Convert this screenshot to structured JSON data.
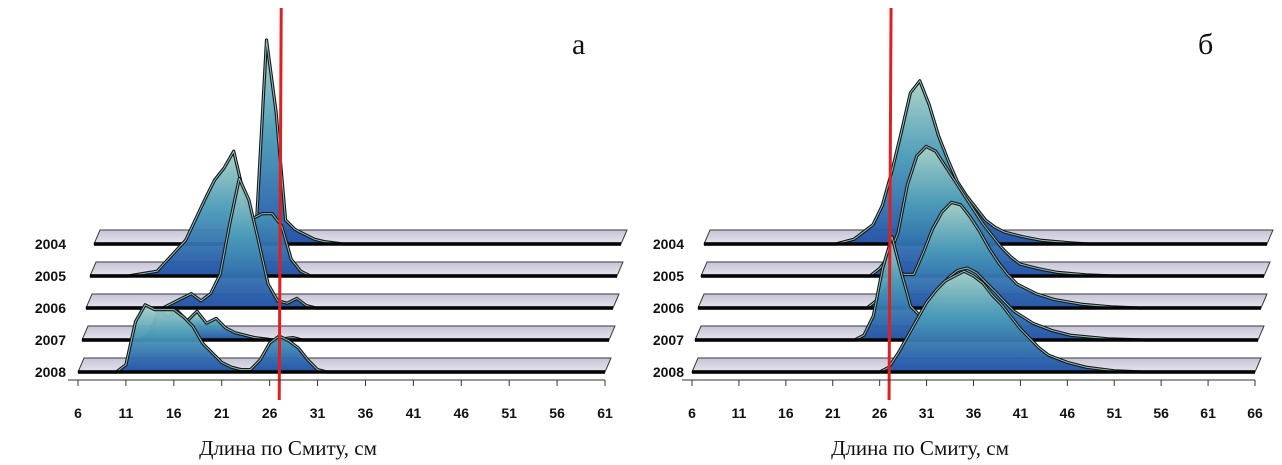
{
  "figure": {
    "panels": [
      {
        "letter": "а",
        "xlabel": "Длина по Смиту, см"
      },
      {
        "letter": "б",
        "xlabel": "Длина по Смиту, см"
      }
    ]
  },
  "chart_data": [
    {
      "type": "area",
      "title": "а",
      "xlabel": "Длина по Смиту, см",
      "ylabel": "",
      "xlim": [
        6,
        61
      ],
      "x_ticks": [
        6,
        11,
        16,
        21,
        26,
        31,
        36,
        41,
        46,
        51,
        56,
        61
      ],
      "reference_line_x": 27,
      "series": [
        {
          "name": "2004",
          "points": [
            [
              6,
              0
            ],
            [
              20,
              0
            ],
            [
              22,
              0.2
            ],
            [
              23,
              1.2
            ],
            [
              24,
              8.5
            ],
            [
              25,
              5.5
            ],
            [
              26,
              1.0
            ],
            [
              27,
              0.6
            ],
            [
              28,
              0.4
            ],
            [
              29,
              0.2
            ],
            [
              30,
              0.1
            ],
            [
              32,
              0
            ],
            [
              61,
              0
            ]
          ]
        },
        {
          "name": "2005",
          "points": [
            [
              6,
              0
            ],
            [
              10,
              0
            ],
            [
              13,
              0.2
            ],
            [
              16,
              1.5
            ],
            [
              18,
              3.2
            ],
            [
              19,
              4.0
            ],
            [
              20,
              4.5
            ],
            [
              21,
              5.2
            ],
            [
              22,
              3.5
            ],
            [
              23,
              2.4
            ],
            [
              24,
              2.6
            ],
            [
              25,
              2.6
            ],
            [
              26,
              2.1
            ],
            [
              27,
              0.7
            ],
            [
              28,
              0.2
            ],
            [
              29,
              0
            ],
            [
              61,
              0
            ]
          ]
        },
        {
          "name": "2006",
          "points": [
            [
              6,
              0
            ],
            [
              14,
              0
            ],
            [
              16,
              0.4
            ],
            [
              17,
              0.6
            ],
            [
              18,
              0.3
            ],
            [
              19,
              0.6
            ],
            [
              20,
              1.4
            ],
            [
              21,
              3.5
            ],
            [
              22,
              5.4
            ],
            [
              23,
              4.5
            ],
            [
              24,
              2.8
            ],
            [
              25,
              1.0
            ],
            [
              26,
              0.3
            ],
            [
              27,
              0.2
            ],
            [
              28,
              0.4
            ],
            [
              29,
              0.1
            ],
            [
              30,
              0
            ],
            [
              61,
              0
            ]
          ]
        },
        {
          "name": "2007",
          "points": [
            [
              6,
              0
            ],
            [
              12,
              0
            ],
            [
              13,
              0.2
            ],
            [
              14,
              1.2
            ],
            [
              15,
              1.0
            ],
            [
              16,
              1.2
            ],
            [
              17,
              0.8
            ],
            [
              18,
              1.2
            ],
            [
              19,
              0.7
            ],
            [
              20,
              0.9
            ],
            [
              21,
              0.5
            ],
            [
              22,
              0.3
            ],
            [
              23,
              0.2
            ],
            [
              24,
              0.1
            ],
            [
              26,
              0
            ],
            [
              28,
              0.1
            ],
            [
              29,
              0
            ],
            [
              61,
              0
            ]
          ]
        },
        {
          "name": "2008",
          "points": [
            [
              6,
              0
            ],
            [
              10,
              0
            ],
            [
              11,
              0.3
            ],
            [
              12,
              2.1
            ],
            [
              13,
              2.8
            ],
            [
              14,
              2.6
            ],
            [
              15,
              2.6
            ],
            [
              16,
              2.6
            ],
            [
              17,
              2.3
            ],
            [
              18,
              1.9
            ],
            [
              19,
              1.2
            ],
            [
              20,
              0.8
            ],
            [
              21,
              0.4
            ],
            [
              22,
              0.2
            ],
            [
              23,
              0.1
            ],
            [
              24,
              0.1
            ],
            [
              25,
              0.5
            ],
            [
              26,
              1.2
            ],
            [
              27,
              1.5
            ],
            [
              28,
              1.3
            ],
            [
              29,
              1.0
            ],
            [
              30,
              0.5
            ],
            [
              31,
              0.1
            ],
            [
              32,
              0
            ],
            [
              61,
              0
            ]
          ]
        }
      ]
    },
    {
      "type": "area",
      "title": "б",
      "xlabel": "Длина по Смиту, см",
      "ylabel": "",
      "xlim": [
        6,
        66
      ],
      "x_ticks": [
        6,
        11,
        16,
        21,
        26,
        31,
        36,
        41,
        46,
        51,
        56,
        61,
        66
      ],
      "reference_line_x": 27,
      "series": [
        {
          "name": "2004",
          "points": [
            [
              6,
              0
            ],
            [
              20,
              0
            ],
            [
              22,
              0.2
            ],
            [
              24,
              0.8
            ],
            [
              25,
              1.6
            ],
            [
              26,
              3.0
            ],
            [
              27,
              4.6
            ],
            [
              28,
              6.3
            ],
            [
              29,
              6.8
            ],
            [
              30,
              5.8
            ],
            [
              31,
              4.5
            ],
            [
              32,
              3.5
            ],
            [
              33,
              2.6
            ],
            [
              34,
              2.0
            ],
            [
              35,
              1.5
            ],
            [
              36,
              1.0
            ],
            [
              37,
              0.7
            ],
            [
              38,
              0.5
            ],
            [
              40,
              0.3
            ],
            [
              42,
              0.15
            ],
            [
              45,
              0.05
            ],
            [
              47,
              0
            ],
            [
              66,
              0
            ]
          ]
        },
        {
          "name": "2005",
          "points": [
            [
              6,
              0
            ],
            [
              24,
              0
            ],
            [
              25,
              0.3
            ],
            [
              26,
              0.8
            ],
            [
              27,
              1.8
            ],
            [
              28,
              3.8
            ],
            [
              29,
              5.0
            ],
            [
              30,
              5.4
            ],
            [
              31,
              5.2
            ],
            [
              32,
              4.6
            ],
            [
              33,
              4.0
            ],
            [
              34,
              3.4
            ],
            [
              35,
              2.8
            ],
            [
              36,
              2.2
            ],
            [
              37,
              1.7
            ],
            [
              38,
              1.2
            ],
            [
              39,
              0.8
            ],
            [
              40,
              0.5
            ],
            [
              42,
              0.3
            ],
            [
              44,
              0.15
            ],
            [
              47,
              0.05
            ],
            [
              50,
              0
            ],
            [
              66,
              0
            ]
          ]
        },
        {
          "name": "2006",
          "points": [
            [
              6,
              0
            ],
            [
              24,
              0
            ],
            [
              25,
              0.3
            ],
            [
              26,
              0.8
            ],
            [
              27,
              1.6
            ],
            [
              28,
              1.4
            ],
            [
              29,
              1.4
            ],
            [
              30,
              2.3
            ],
            [
              31,
              3.3
            ],
            [
              32,
              4.0
            ],
            [
              33,
              4.4
            ],
            [
              34,
              4.3
            ],
            [
              35,
              3.8
            ],
            [
              36,
              3.2
            ],
            [
              37,
              2.5
            ],
            [
              38,
              1.9
            ],
            [
              39,
              1.4
            ],
            [
              40,
              1.0
            ],
            [
              42,
              0.6
            ],
            [
              44,
              0.35
            ],
            [
              47,
              0.15
            ],
            [
              50,
              0.05
            ],
            [
              53,
              0
            ],
            [
              66,
              0
            ]
          ]
        },
        {
          "name": "2007",
          "points": [
            [
              6,
              0
            ],
            [
              23,
              0
            ],
            [
              24,
              0.2
            ],
            [
              25,
              1.0
            ],
            [
              26,
              3.0
            ],
            [
              27,
              4.3
            ],
            [
              28,
              2.8
            ],
            [
              29,
              1.4
            ],
            [
              30,
              1.0
            ],
            [
              31,
              1.3
            ],
            [
              32,
              2.0
            ],
            [
              33,
              2.6
            ],
            [
              34,
              2.9
            ],
            [
              35,
              3.0
            ],
            [
              36,
              2.8
            ],
            [
              37,
              2.4
            ],
            [
              38,
              2.0
            ],
            [
              39,
              1.6
            ],
            [
              40,
              1.2
            ],
            [
              42,
              0.7
            ],
            [
              44,
              0.4
            ],
            [
              46,
              0.2
            ],
            [
              50,
              0.05
            ],
            [
              54,
              0
            ],
            [
              66,
              0
            ]
          ]
        },
        {
          "name": "2008",
          "points": [
            [
              6,
              0
            ],
            [
              26,
              0
            ],
            [
              27,
              0.2
            ],
            [
              28,
              0.8
            ],
            [
              29,
              1.5
            ],
            [
              30,
              2.2
            ],
            [
              31,
              2.9
            ],
            [
              32,
              3.4
            ],
            [
              33,
              3.8
            ],
            [
              34,
              4.0
            ],
            [
              35,
              4.2
            ],
            [
              36,
              4.0
            ],
            [
              37,
              3.7
            ],
            [
              38,
              3.2
            ],
            [
              39,
              2.8
            ],
            [
              40,
              2.3
            ],
            [
              41,
              1.8
            ],
            [
              42,
              1.4
            ],
            [
              43,
              1.0
            ],
            [
              44,
              0.7
            ],
            [
              46,
              0.4
            ],
            [
              48,
              0.2
            ],
            [
              51,
              0.05
            ],
            [
              54,
              0
            ],
            [
              66,
              0
            ]
          ]
        }
      ]
    }
  ]
}
